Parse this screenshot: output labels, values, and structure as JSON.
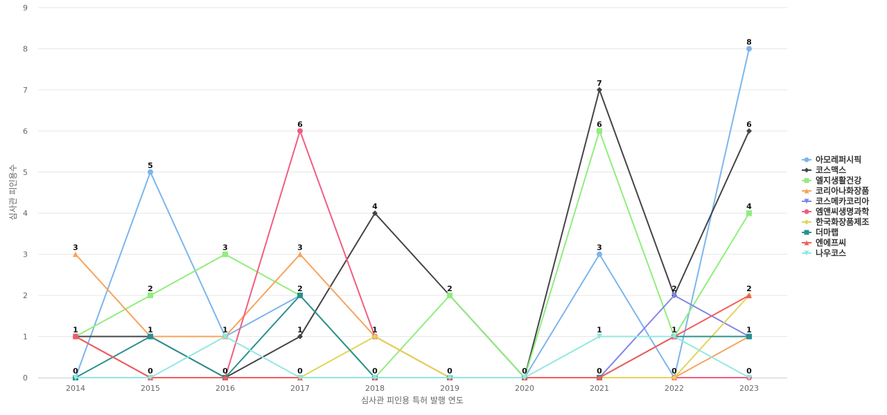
{
  "chart_data": {
    "type": "line",
    "title": "",
    "xlabel": "심사관 피인용 특허 발행 연도",
    "ylabel": "심사관 피인용수",
    "categories": [
      "2014",
      "2015",
      "2016",
      "2017",
      "2018",
      "2019",
      "2020",
      "2021",
      "2022",
      "2023"
    ],
    "ylim": [
      0,
      9
    ],
    "yticks": [
      0,
      1,
      2,
      3,
      4,
      5,
      6,
      7,
      8,
      9
    ],
    "grid": true,
    "legend_position": "right",
    "series": [
      {
        "name": "아모레퍼시픽",
        "color": "#7cb5ec",
        "marker": "circle",
        "values": [
          0,
          5,
          1,
          2,
          0,
          0,
          0,
          3,
          0,
          8
        ]
      },
      {
        "name": "코스맥스",
        "color": "#434348",
        "marker": "diamond",
        "values": [
          1,
          1,
          0,
          1,
          4,
          2,
          0,
          7,
          2,
          6
        ]
      },
      {
        "name": "엘지생활건강",
        "color": "#90ed7d",
        "marker": "square",
        "values": [
          1,
          2,
          3,
          2,
          0,
          2,
          0,
          6,
          1,
          4
        ]
      },
      {
        "name": "코리아나화장품",
        "color": "#f7a35c",
        "marker": "triangle",
        "values": [
          3,
          1,
          1,
          3,
          1,
          0,
          0,
          0,
          0,
          1
        ]
      },
      {
        "name": "코스메카코리아",
        "color": "#8085e9",
        "marker": "triangle-down",
        "values": [
          1,
          0,
          0,
          0,
          0,
          0,
          0,
          0,
          2,
          1
        ]
      },
      {
        "name": "엠앤씨생명과학",
        "color": "#f15c80",
        "marker": "circle",
        "values": [
          1,
          0,
          0,
          6,
          1,
          0,
          0,
          0,
          0,
          0
        ]
      },
      {
        "name": "한국화장품제조",
        "color": "#e4d354",
        "marker": "diamond",
        "values": [
          0,
          0,
          0,
          0,
          1,
          0,
          0,
          0,
          0,
          2
        ]
      },
      {
        "name": "더마랩",
        "color": "#2b908f",
        "marker": "square",
        "values": [
          0,
          1,
          0,
          2,
          0,
          0,
          0,
          0,
          1,
          1
        ]
      },
      {
        "name": "엔에프씨",
        "color": "#f45b5b",
        "marker": "triangle",
        "values": [
          1,
          0,
          0,
          0,
          0,
          0,
          0,
          0,
          1,
          2
        ]
      },
      {
        "name": "나우코스",
        "color": "#91e8e1",
        "marker": "triangle-down",
        "values": [
          0,
          0,
          1,
          0,
          0,
          0,
          0,
          1,
          1,
          0
        ]
      }
    ],
    "data_labels": [
      {
        "x": "2014",
        "label": "3",
        "value": 3
      },
      {
        "x": "2014",
        "label": "1",
        "value": 1
      },
      {
        "x": "2014",
        "label": "0",
        "value": 0
      },
      {
        "x": "2015",
        "label": "5",
        "value": 5
      },
      {
        "x": "2015",
        "label": "2",
        "value": 2
      },
      {
        "x": "2015",
        "label": "1",
        "value": 1
      },
      {
        "x": "2015",
        "label": "0",
        "value": 0
      },
      {
        "x": "2016",
        "label": "3",
        "value": 3
      },
      {
        "x": "2016",
        "label": "1",
        "value": 1
      },
      {
        "x": "2016",
        "label": "0",
        "value": 0
      },
      {
        "x": "2017",
        "label": "6",
        "value": 6
      },
      {
        "x": "2017",
        "label": "3",
        "value": 3
      },
      {
        "x": "2017",
        "label": "2",
        "value": 2
      },
      {
        "x": "2017",
        "label": "1",
        "value": 1
      },
      {
        "x": "2017",
        "label": "0",
        "value": 0
      },
      {
        "x": "2018",
        "label": "4",
        "value": 4
      },
      {
        "x": "2018",
        "label": "1",
        "value": 1
      },
      {
        "x": "2018",
        "label": "0",
        "value": 0
      },
      {
        "x": "2019",
        "label": "2",
        "value": 2
      },
      {
        "x": "2019",
        "label": "0",
        "value": 0
      },
      {
        "x": "2020",
        "label": "0",
        "value": 0
      },
      {
        "x": "2021",
        "label": "7",
        "value": 7
      },
      {
        "x": "2021",
        "label": "6",
        "value": 6
      },
      {
        "x": "2021",
        "label": "3",
        "value": 3
      },
      {
        "x": "2021",
        "label": "1",
        "value": 1
      },
      {
        "x": "2021",
        "label": "0",
        "value": 0
      },
      {
        "x": "2022",
        "label": "2",
        "value": 2
      },
      {
        "x": "2022",
        "label": "1",
        "value": 1
      },
      {
        "x": "2022",
        "label": "0",
        "value": 0
      },
      {
        "x": "2023",
        "label": "8",
        "value": 8
      },
      {
        "x": "2023",
        "label": "6",
        "value": 6
      },
      {
        "x": "2023",
        "label": "4",
        "value": 4
      },
      {
        "x": "2023",
        "label": "2",
        "value": 2
      },
      {
        "x": "2023",
        "label": "1",
        "value": 1
      },
      {
        "x": "2023",
        "label": "0",
        "value": 0
      }
    ]
  }
}
